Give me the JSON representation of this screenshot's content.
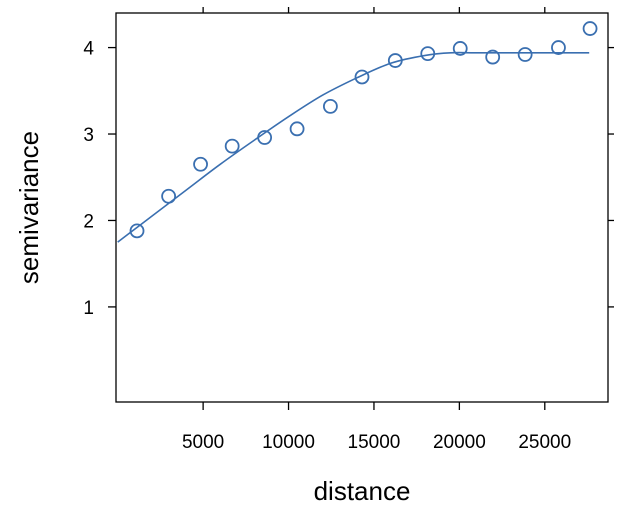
{
  "chart_data": {
    "type": "scatter",
    "title": "",
    "xlabel": "distance",
    "ylabel": "semivariance",
    "xlim": [
      -100,
      28700
    ],
    "ylim": [
      -0.1,
      4.4
    ],
    "xticks": [
      5000,
      10000,
      15000,
      20000,
      25000
    ],
    "xtick_labels": [
      "5000",
      "10000",
      "15000",
      "20000",
      "25000"
    ],
    "yticks": [
      1,
      2,
      3,
      4
    ],
    "ytick_labels": [
      "1",
      "2",
      "3",
      "4"
    ],
    "grid": false,
    "color": "#3a6fb0",
    "series": [
      {
        "type": "scatter",
        "marker": "open-circle",
        "x": [
          1130,
          2980,
          4850,
          6700,
          8600,
          10500,
          12450,
          14300,
          16250,
          18150,
          20050,
          21950,
          23850,
          25800,
          27650
        ],
        "y": [
          1.88,
          2.28,
          2.65,
          2.86,
          2.96,
          3.06,
          3.32,
          3.66,
          3.85,
          3.93,
          3.99,
          3.89,
          3.92,
          4.0,
          4.22
        ]
      },
      {
        "type": "line",
        "x": [
          0,
          2000,
          4000,
          6000,
          8000,
          10000,
          12000,
          14000,
          16000,
          18000,
          19500,
          21000,
          24000,
          27600
        ],
        "y": [
          1.75,
          2.05,
          2.35,
          2.65,
          2.93,
          3.2,
          3.45,
          3.65,
          3.82,
          3.91,
          3.94,
          3.94,
          3.94,
          3.94
        ]
      }
    ]
  }
}
